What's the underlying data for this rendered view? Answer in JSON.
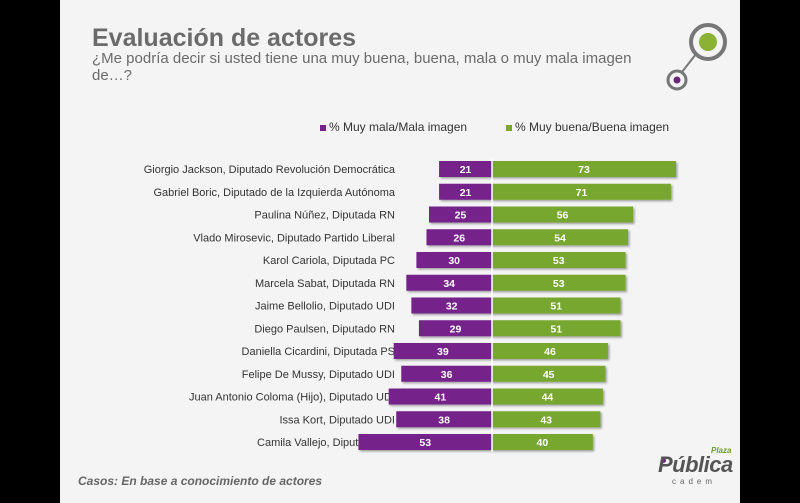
{
  "title": "Evaluación de actores",
  "subtitle": "¿Me podría decir si usted tiene una muy buena, buena, mala o muy mala imagen de…?",
  "footnote": "Casos: En base a conocimiento de actores",
  "logo": {
    "brand": "Pública",
    "plaza": "Plaza",
    "sub": "cadem"
  },
  "colors": {
    "negative": "#74238a",
    "positive": "#77a72f",
    "background": "#f4f4f4"
  },
  "chart_data": {
    "type": "bar",
    "orientation": "horizontal-diverging",
    "categories": [
      "Giorgio Jackson, Diputado Revolución Democrática",
      "Gabriel Boric, Diputado de la Izquierda Autónoma",
      "Paulina Núñez, Diputada RN",
      "Vlado Mirosevic, Diputado Partido Liberal",
      "Karol Cariola, Diputada PC",
      "Marcela Sabat, Diputada RN",
      "Jaime Bellolio, Diputado UDI",
      "Diego Paulsen, Diputado RN",
      "Daniella Cicardini, Diputada PS",
      "Felipe De Mussy, Diputado UDI",
      "Juan Antonio Coloma (Hijo), Diputado UDI",
      "Issa Kort, Diputado UDI",
      "Camila Vallejo, Diputada PC"
    ],
    "series": [
      {
        "name": "% Muy mala/Mala imagen",
        "values": [
          21,
          21,
          25,
          26,
          30,
          34,
          32,
          29,
          39,
          36,
          41,
          38,
          53
        ]
      },
      {
        "name": "% Muy buena/Buena imagen",
        "values": [
          73,
          71,
          56,
          54,
          53,
          53,
          51,
          51,
          46,
          45,
          44,
          43,
          40
        ]
      }
    ],
    "legend": "top"
  }
}
